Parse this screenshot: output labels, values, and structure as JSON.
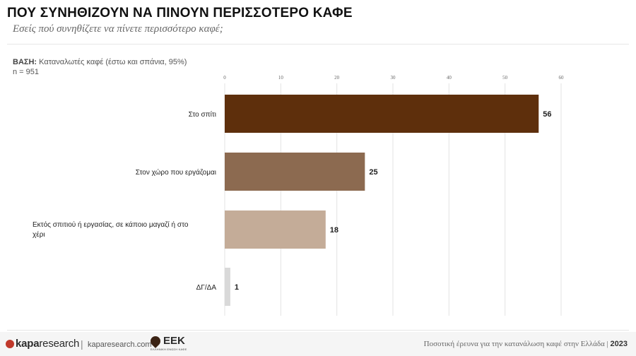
{
  "header": {
    "title": "ΠΟΥ ΣΥΝΗΘΙΖΟΥΝ ΝΑ ΠΙΝΟΥΝ ΠΕΡΙΣΣΟΤΕΡΟ ΚΑΦΕ",
    "subtitle": "Εσείς πού συνηθίζετε να πίνετε περισσότερο καφέ;"
  },
  "base": {
    "label": "ΒΑΣΗ:",
    "text": " Καταναλωτές καφέ (έστω και σπάνια, 95%)",
    "n": "n = 951"
  },
  "chart_data": {
    "type": "bar",
    "orientation": "horizontal",
    "categories": [
      "Στο σπίτι",
      "Στον χώρο που εργάζομαι",
      "Εκτός σπιτιού ή εργασίας, σε κάποιο μαγαζί ή στο χέρι",
      "ΔΓ/ΔΑ"
    ],
    "values": [
      56,
      25,
      18,
      1
    ],
    "bar_colors": [
      "#5e2f0c",
      "#8c6a50",
      "#c4ac98",
      "#d9d9d9"
    ],
    "x_ticks": [
      0,
      10,
      20,
      30,
      40,
      50,
      60
    ],
    "xlim": [
      0,
      60
    ],
    "grid": true,
    "tick_position": "top"
  },
  "footer": {
    "logo_bold": "kapa",
    "logo_rest": "research",
    "separator": "|",
    "site": "kaparesearch.com",
    "partner": "ΕΕΚ",
    "partner_sub": "ΕΛΛΗΝΙΚΗ ΕΝΩΣΗ ΚΑΦΕ",
    "survey": "Ποσοτική έρευνα για την κατανάλωση καφέ στην Ελλάδα | ",
    "year": "2023"
  }
}
